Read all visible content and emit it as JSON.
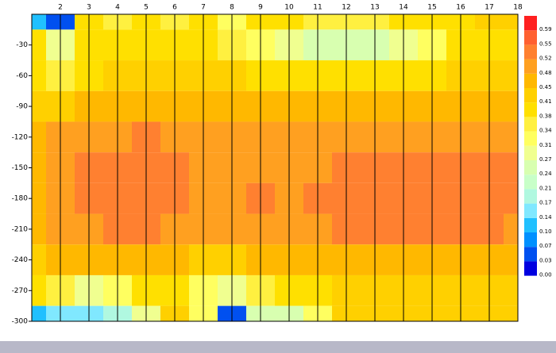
{
  "chart_data": {
    "type": "heatmap",
    "x": [
      1,
      2,
      3,
      4,
      5,
      6,
      7,
      8,
      9,
      10,
      11,
      12,
      13,
      14,
      15,
      16,
      17,
      18
    ],
    "y": [
      0,
      -30,
      -60,
      -90,
      -120,
      -150,
      -180,
      -210,
      -240,
      -270,
      -300
    ],
    "z": [
      [
        0.1,
        0.05,
        0.38,
        0.35,
        0.38,
        0.34,
        0.38,
        0.31,
        0.38,
        0.38,
        0.34,
        0.34,
        0.34,
        0.38,
        0.38,
        0.38,
        0.41,
        0.41
      ],
      [
        0.38,
        0.27,
        0.38,
        0.38,
        0.38,
        0.38,
        0.38,
        0.34,
        0.31,
        0.27,
        0.24,
        0.24,
        0.24,
        0.27,
        0.31,
        0.38,
        0.38,
        0.38
      ],
      [
        0.38,
        0.34,
        0.38,
        0.41,
        0.41,
        0.41,
        0.41,
        0.41,
        0.38,
        0.38,
        0.38,
        0.38,
        0.38,
        0.38,
        0.38,
        0.41,
        0.41,
        0.41
      ],
      [
        0.41,
        0.41,
        0.45,
        0.45,
        0.45,
        0.45,
        0.45,
        0.45,
        0.45,
        0.45,
        0.45,
        0.45,
        0.45,
        0.45,
        0.45,
        0.45,
        0.45,
        0.45
      ],
      [
        0.45,
        0.48,
        0.48,
        0.5,
        0.52,
        0.5,
        0.48,
        0.48,
        0.48,
        0.48,
        0.48,
        0.48,
        0.48,
        0.48,
        0.48,
        0.48,
        0.48,
        0.48
      ],
      [
        0.45,
        0.5,
        0.52,
        0.52,
        0.52,
        0.52,
        0.5,
        0.48,
        0.5,
        0.48,
        0.5,
        0.52,
        0.52,
        0.52,
        0.52,
        0.52,
        0.52,
        0.52
      ],
      [
        0.45,
        0.5,
        0.52,
        0.52,
        0.52,
        0.52,
        0.5,
        0.48,
        0.52,
        0.48,
        0.52,
        0.52,
        0.52,
        0.52,
        0.52,
        0.52,
        0.52,
        0.52
      ],
      [
        0.45,
        0.48,
        0.5,
        0.52,
        0.52,
        0.5,
        0.48,
        0.48,
        0.5,
        0.48,
        0.5,
        0.52,
        0.52,
        0.52,
        0.52,
        0.52,
        0.52,
        0.5
      ],
      [
        0.41,
        0.45,
        0.45,
        0.45,
        0.45,
        0.45,
        0.41,
        0.41,
        0.45,
        0.45,
        0.45,
        0.45,
        0.45,
        0.45,
        0.45,
        0.45,
        0.45,
        0.45
      ],
      [
        0.38,
        0.34,
        0.27,
        0.31,
        0.38,
        0.38,
        0.31,
        0.27,
        0.34,
        0.38,
        0.38,
        0.41,
        0.41,
        0.41,
        0.41,
        0.41,
        0.41,
        0.41
      ],
      [
        0.1,
        0.14,
        0.14,
        0.17,
        0.27,
        0.41,
        0.31,
        0.03,
        0.24,
        0.24,
        0.31,
        0.41,
        0.41,
        0.41,
        0.41,
        0.41,
        0.41,
        0.41
      ]
    ],
    "xlim": [
      1,
      18
    ],
    "ylim": [
      -300,
      0
    ],
    "xticks": [
      2,
      3,
      4,
      5,
      6,
      7,
      8,
      9,
      10,
      11,
      12,
      13,
      14,
      15,
      16,
      17,
      18
    ],
    "yticks": [
      -30,
      -60,
      -90,
      -120,
      -150,
      -180,
      -210,
      -240,
      -270,
      -300
    ],
    "levels": [
      {
        "value": 0.0,
        "label": "0.00"
      },
      {
        "value": 0.03,
        "label": "0.03"
      },
      {
        "value": 0.07,
        "label": "0.07"
      },
      {
        "value": 0.1,
        "label": "0.10"
      },
      {
        "value": 0.14,
        "label": "0.14"
      },
      {
        "value": 0.17,
        "label": "0.17"
      },
      {
        "value": 0.21,
        "label": "0.21"
      },
      {
        "value": 0.24,
        "label": "0.24"
      },
      {
        "value": 0.27,
        "label": "0.27"
      },
      {
        "value": 0.31,
        "label": "0.31"
      },
      {
        "value": 0.34,
        "label": "0.34"
      },
      {
        "value": 0.38,
        "label": "0.38"
      },
      {
        "value": 0.41,
        "label": "0.41"
      },
      {
        "value": 0.45,
        "label": "0.45"
      },
      {
        "value": 0.48,
        "label": "0.48"
      },
      {
        "value": 0.52,
        "label": "0.52"
      },
      {
        "value": 0.55,
        "label": "0.55"
      },
      {
        "value": 0.59,
        "label": "0.59"
      }
    ],
    "level_colors": [
      "#0000e0",
      "#0050f0",
      "#0090ff",
      "#20c0ff",
      "#80e8ff",
      "#b0f8e0",
      "#c8ffc8",
      "#d8ffb0",
      "#f0ff90",
      "#ffff60",
      "#fff040",
      "#ffe000",
      "#ffd000",
      "#ffb800",
      "#ffa020",
      "#ff8030",
      "#ff6030",
      "#ff2020"
    ],
    "grid": true
  }
}
